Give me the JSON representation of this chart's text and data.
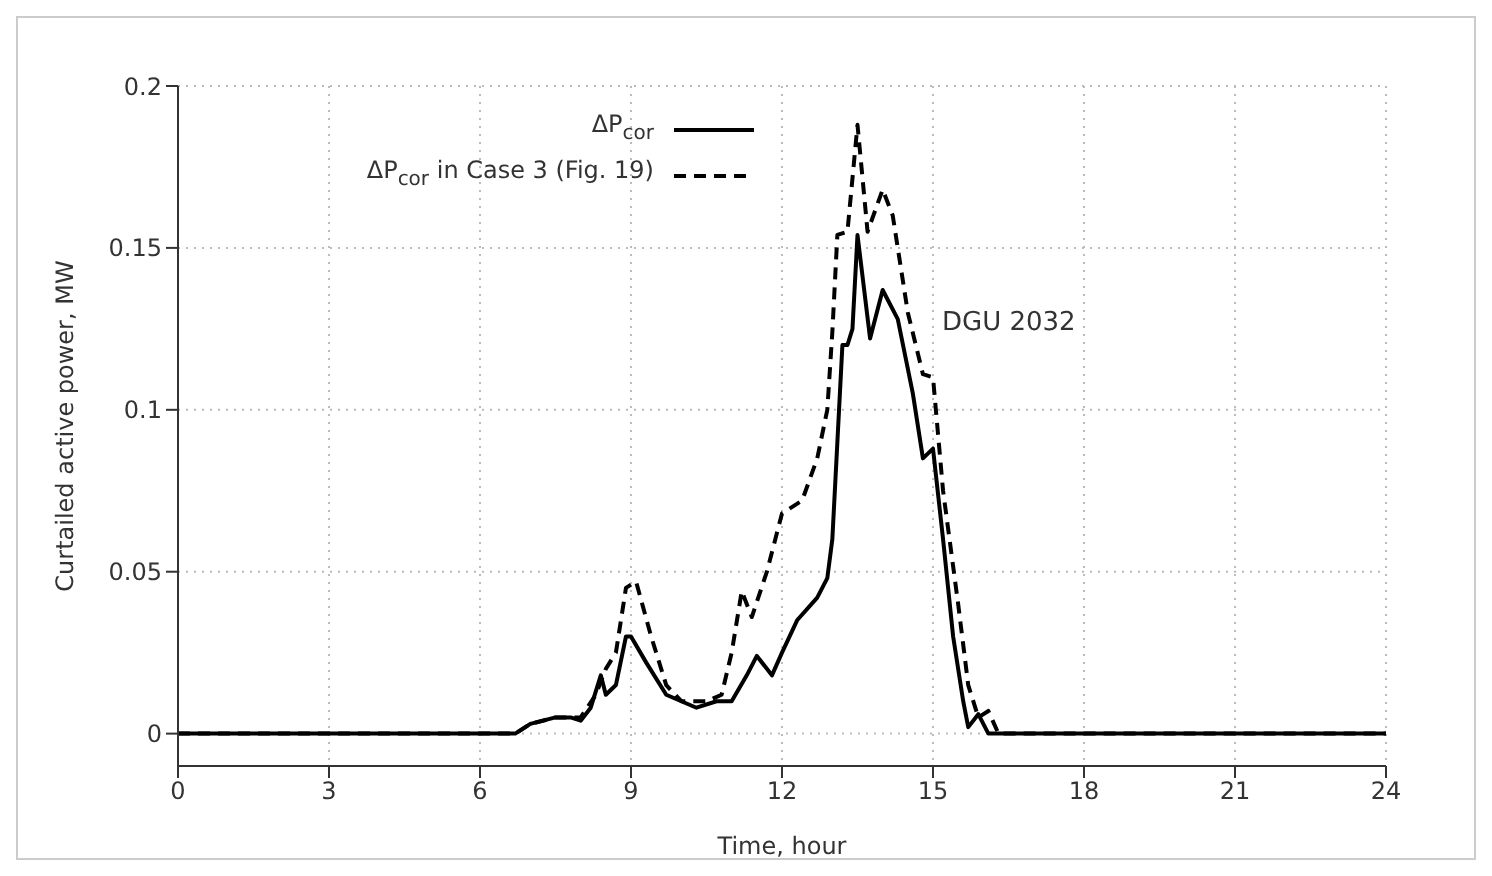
{
  "chart_data": {
    "type": "line",
    "xlabel": "Time, hour",
    "ylabel": "Curtailed active power, MW",
    "xlim": [
      0,
      24
    ],
    "xticks": [
      0,
      3,
      6,
      9,
      12,
      15,
      18,
      21,
      24
    ],
    "ylim": [
      -0.01,
      0.2
    ],
    "yticks": [
      0,
      0.05,
      0.1,
      0.15,
      0.2
    ],
    "grid": true,
    "legend": "top",
    "marker": "none",
    "annotations": [
      "DGU 2032"
    ],
    "series": [
      {
        "name": "ΔP$_{cor}$",
        "color": "#000000",
        "line_style": "solid",
        "x": [
          0,
          6.7,
          7.0,
          7.5,
          7.8,
          8.0,
          8.2,
          8.4,
          8.5,
          8.7,
          8.9,
          9.0,
          9.3,
          9.7,
          10.0,
          10.3,
          10.7,
          11.0,
          11.3,
          11.5,
          11.8,
          12.0,
          12.3,
          12.7,
          12.9,
          13.0,
          13.1,
          13.2,
          13.3,
          13.4,
          13.5,
          13.75,
          14.0,
          14.3,
          14.6,
          14.8,
          15.0,
          15.2,
          15.4,
          15.6,
          15.7,
          15.9,
          16.1,
          24
        ],
        "values": [
          0,
          0,
          0.003,
          0.005,
          0.005,
          0.004,
          0.008,
          0.018,
          0.012,
          0.015,
          0.03,
          0.03,
          0.022,
          0.012,
          0.01,
          0.008,
          0.01,
          0.01,
          0.018,
          0.024,
          0.018,
          0.025,
          0.035,
          0.042,
          0.048,
          0.06,
          0.09,
          0.12,
          0.12,
          0.125,
          0.154,
          0.122,
          0.137,
          0.128,
          0.105,
          0.085,
          0.088,
          0.06,
          0.03,
          0.01,
          0.002,
          0.006,
          0,
          0
        ]
      },
      {
        "name": "ΔP$_{cor}$ in Case 3 (Fig. 19)",
        "color": "#000000",
        "line_style": "dashed",
        "x": [
          0,
          6.7,
          7.0,
          7.5,
          7.8,
          8.0,
          8.3,
          8.5,
          8.7,
          8.9,
          9.1,
          9.4,
          9.7,
          10.0,
          10.5,
          10.8,
          11.0,
          11.2,
          11.4,
          11.7,
          12.0,
          12.4,
          12.7,
          12.9,
          13.0,
          13.1,
          13.3,
          13.5,
          13.7,
          14.0,
          14.2,
          14.5,
          14.8,
          15.0,
          15.2,
          15.5,
          15.7,
          15.9,
          16.1,
          16.3,
          24
        ],
        "values": [
          0,
          0,
          0.003,
          0.005,
          0.005,
          0.005,
          0.012,
          0.02,
          0.025,
          0.045,
          0.047,
          0.03,
          0.015,
          0.01,
          0.01,
          0.012,
          0.025,
          0.044,
          0.036,
          0.05,
          0.068,
          0.072,
          0.085,
          0.1,
          0.124,
          0.154,
          0.155,
          0.188,
          0.155,
          0.168,
          0.16,
          0.13,
          0.111,
          0.11,
          0.075,
          0.04,
          0.015,
          0.005,
          0.007,
          0,
          0
        ]
      }
    ]
  }
}
